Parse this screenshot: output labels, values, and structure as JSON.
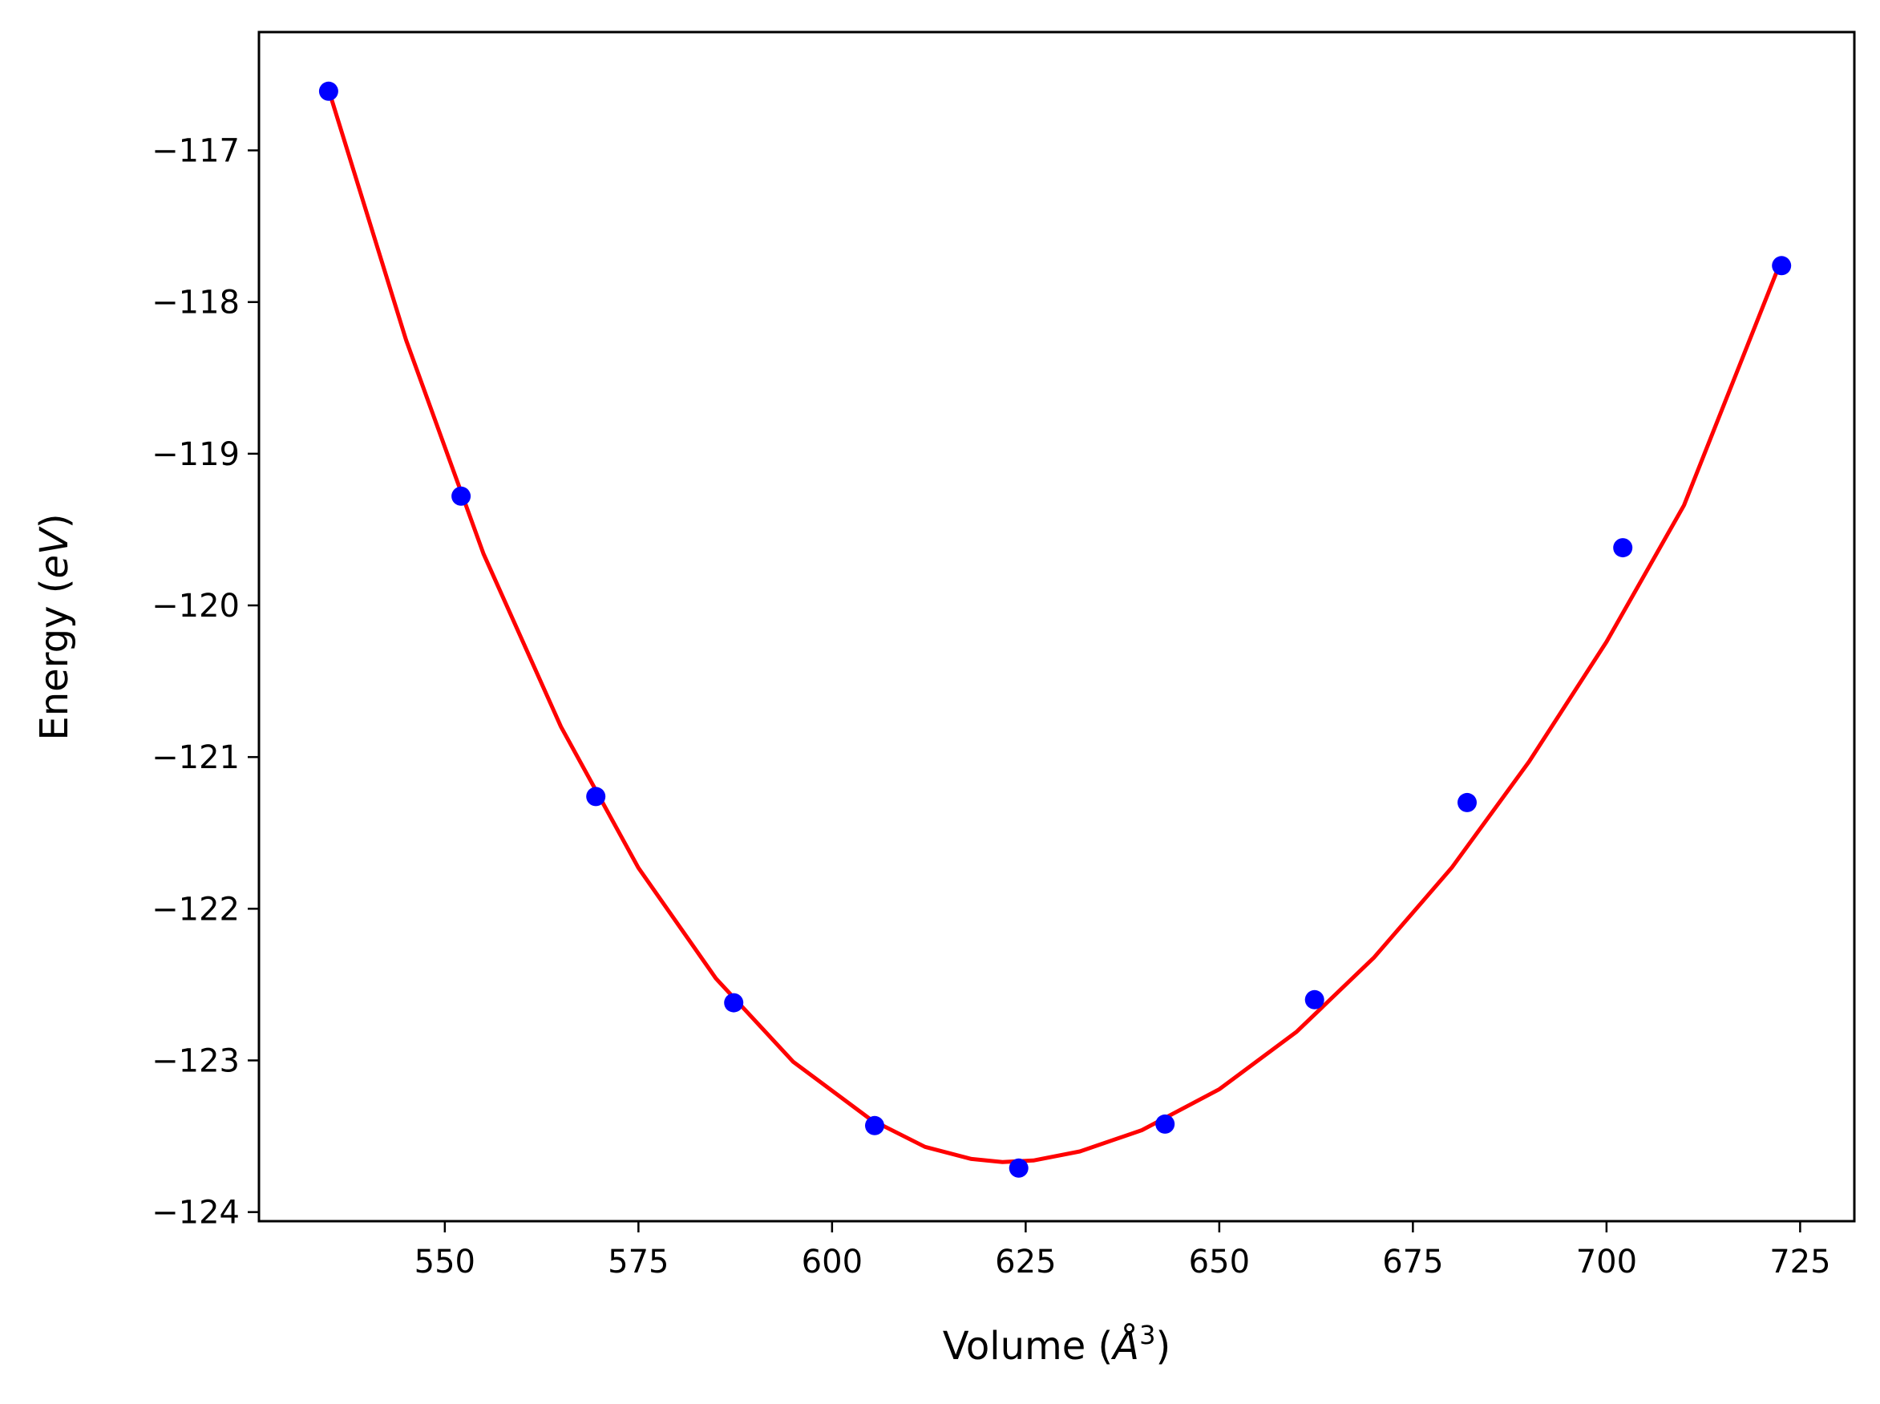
{
  "chart_data": {
    "type": "scatter",
    "title": "",
    "xlabel": {
      "prefix": "Volume (",
      "symbol": "Å",
      "superscript": "3",
      "suffix": ")"
    },
    "ylabel": {
      "prefix": "Energy (",
      "unit": "eV",
      "suffix": ")"
    },
    "xlim": [
      526,
      732
    ],
    "ylim": [
      -124.06,
      -116.22
    ],
    "xticks": [
      550,
      575,
      600,
      625,
      650,
      675,
      700,
      725
    ],
    "xtick_labels": [
      "550",
      "575",
      "600",
      "625",
      "650",
      "675",
      "700",
      "725"
    ],
    "yticks": [
      -117,
      -118,
      -119,
      -120,
      -121,
      -122,
      -123,
      -124
    ],
    "ytick_labels": [
      "−117",
      "−118",
      "−119",
      "−120",
      "−121",
      "−122",
      "−123",
      "−124"
    ],
    "grid": false,
    "series": [
      {
        "kind": "points",
        "color": "#0000ff",
        "x": [
          535.0,
          552.1,
          569.5,
          587.3,
          605.5,
          624.1,
          643.0,
          662.3,
          682.0,
          702.1,
          722.6
        ],
        "y": [
          -116.61,
          -119.28,
          -121.26,
          -122.62,
          -123.43,
          -123.71,
          -123.42,
          -122.6,
          -121.3,
          -119.62,
          -117.76
        ]
      },
      {
        "kind": "fit-line",
        "color": "#ff0000",
        "x": [
          535.0,
          545.0,
          555.0,
          565.0,
          575.0,
          585.0,
          595.0,
          605.0,
          612.0,
          618.0,
          622.0,
          626.0,
          632.0,
          640.0,
          650.0,
          660.0,
          670.0,
          680.0,
          690.0,
          700.0,
          710.0,
          722.6
        ],
        "y": [
          -116.6,
          -118.25,
          -119.66,
          -120.8,
          -121.73,
          -122.46,
          -123.01,
          -123.39,
          -123.57,
          -123.65,
          -123.67,
          -123.66,
          -123.6,
          -123.46,
          -123.19,
          -122.81,
          -122.32,
          -121.73,
          -121.03,
          -120.24,
          -119.34,
          -117.72
        ]
      }
    ]
  }
}
